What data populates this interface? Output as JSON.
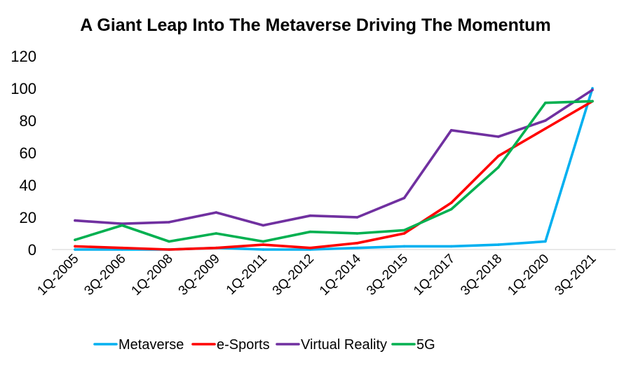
{
  "chart_data": {
    "type": "line",
    "title": "A Giant Leap Into The Metaverse Driving The Momentum",
    "xlabel": "",
    "ylabel": "",
    "ylim": [
      0,
      120
    ],
    "yticks": [
      0,
      20,
      40,
      60,
      80,
      100,
      120
    ],
    "grid": false,
    "legend_position": "bottom",
    "categories": [
      "1Q-2005",
      "3Q-2006",
      "1Q-2008",
      "3Q-2009",
      "1Q-2011",
      "3Q-2012",
      "1Q-2014",
      "3Q-2015",
      "1Q-2017",
      "3Q-2018",
      "1Q-2020",
      "3Q-2021"
    ],
    "series": [
      {
        "name": "Metaverse",
        "color": "#00b0f0",
        "values": [
          0,
          0,
          0,
          1,
          0,
          0,
          1,
          2,
          2,
          3,
          5,
          100
        ]
      },
      {
        "name": "e-Sports",
        "color": "#ff0000",
        "values": [
          2,
          1,
          0,
          1,
          3,
          1,
          4,
          10,
          29,
          58,
          75,
          92
        ]
      },
      {
        "name": "Virtual Reality",
        "color": "#7030a0",
        "values": [
          18,
          16,
          17,
          23,
          15,
          21,
          20,
          32,
          74,
          70,
          80,
          99
        ]
      },
      {
        "name": "5G",
        "color": "#00b050",
        "values": [
          6,
          15,
          5,
          10,
          5,
          11,
          10,
          12,
          25,
          51,
          91,
          92
        ]
      }
    ]
  }
}
